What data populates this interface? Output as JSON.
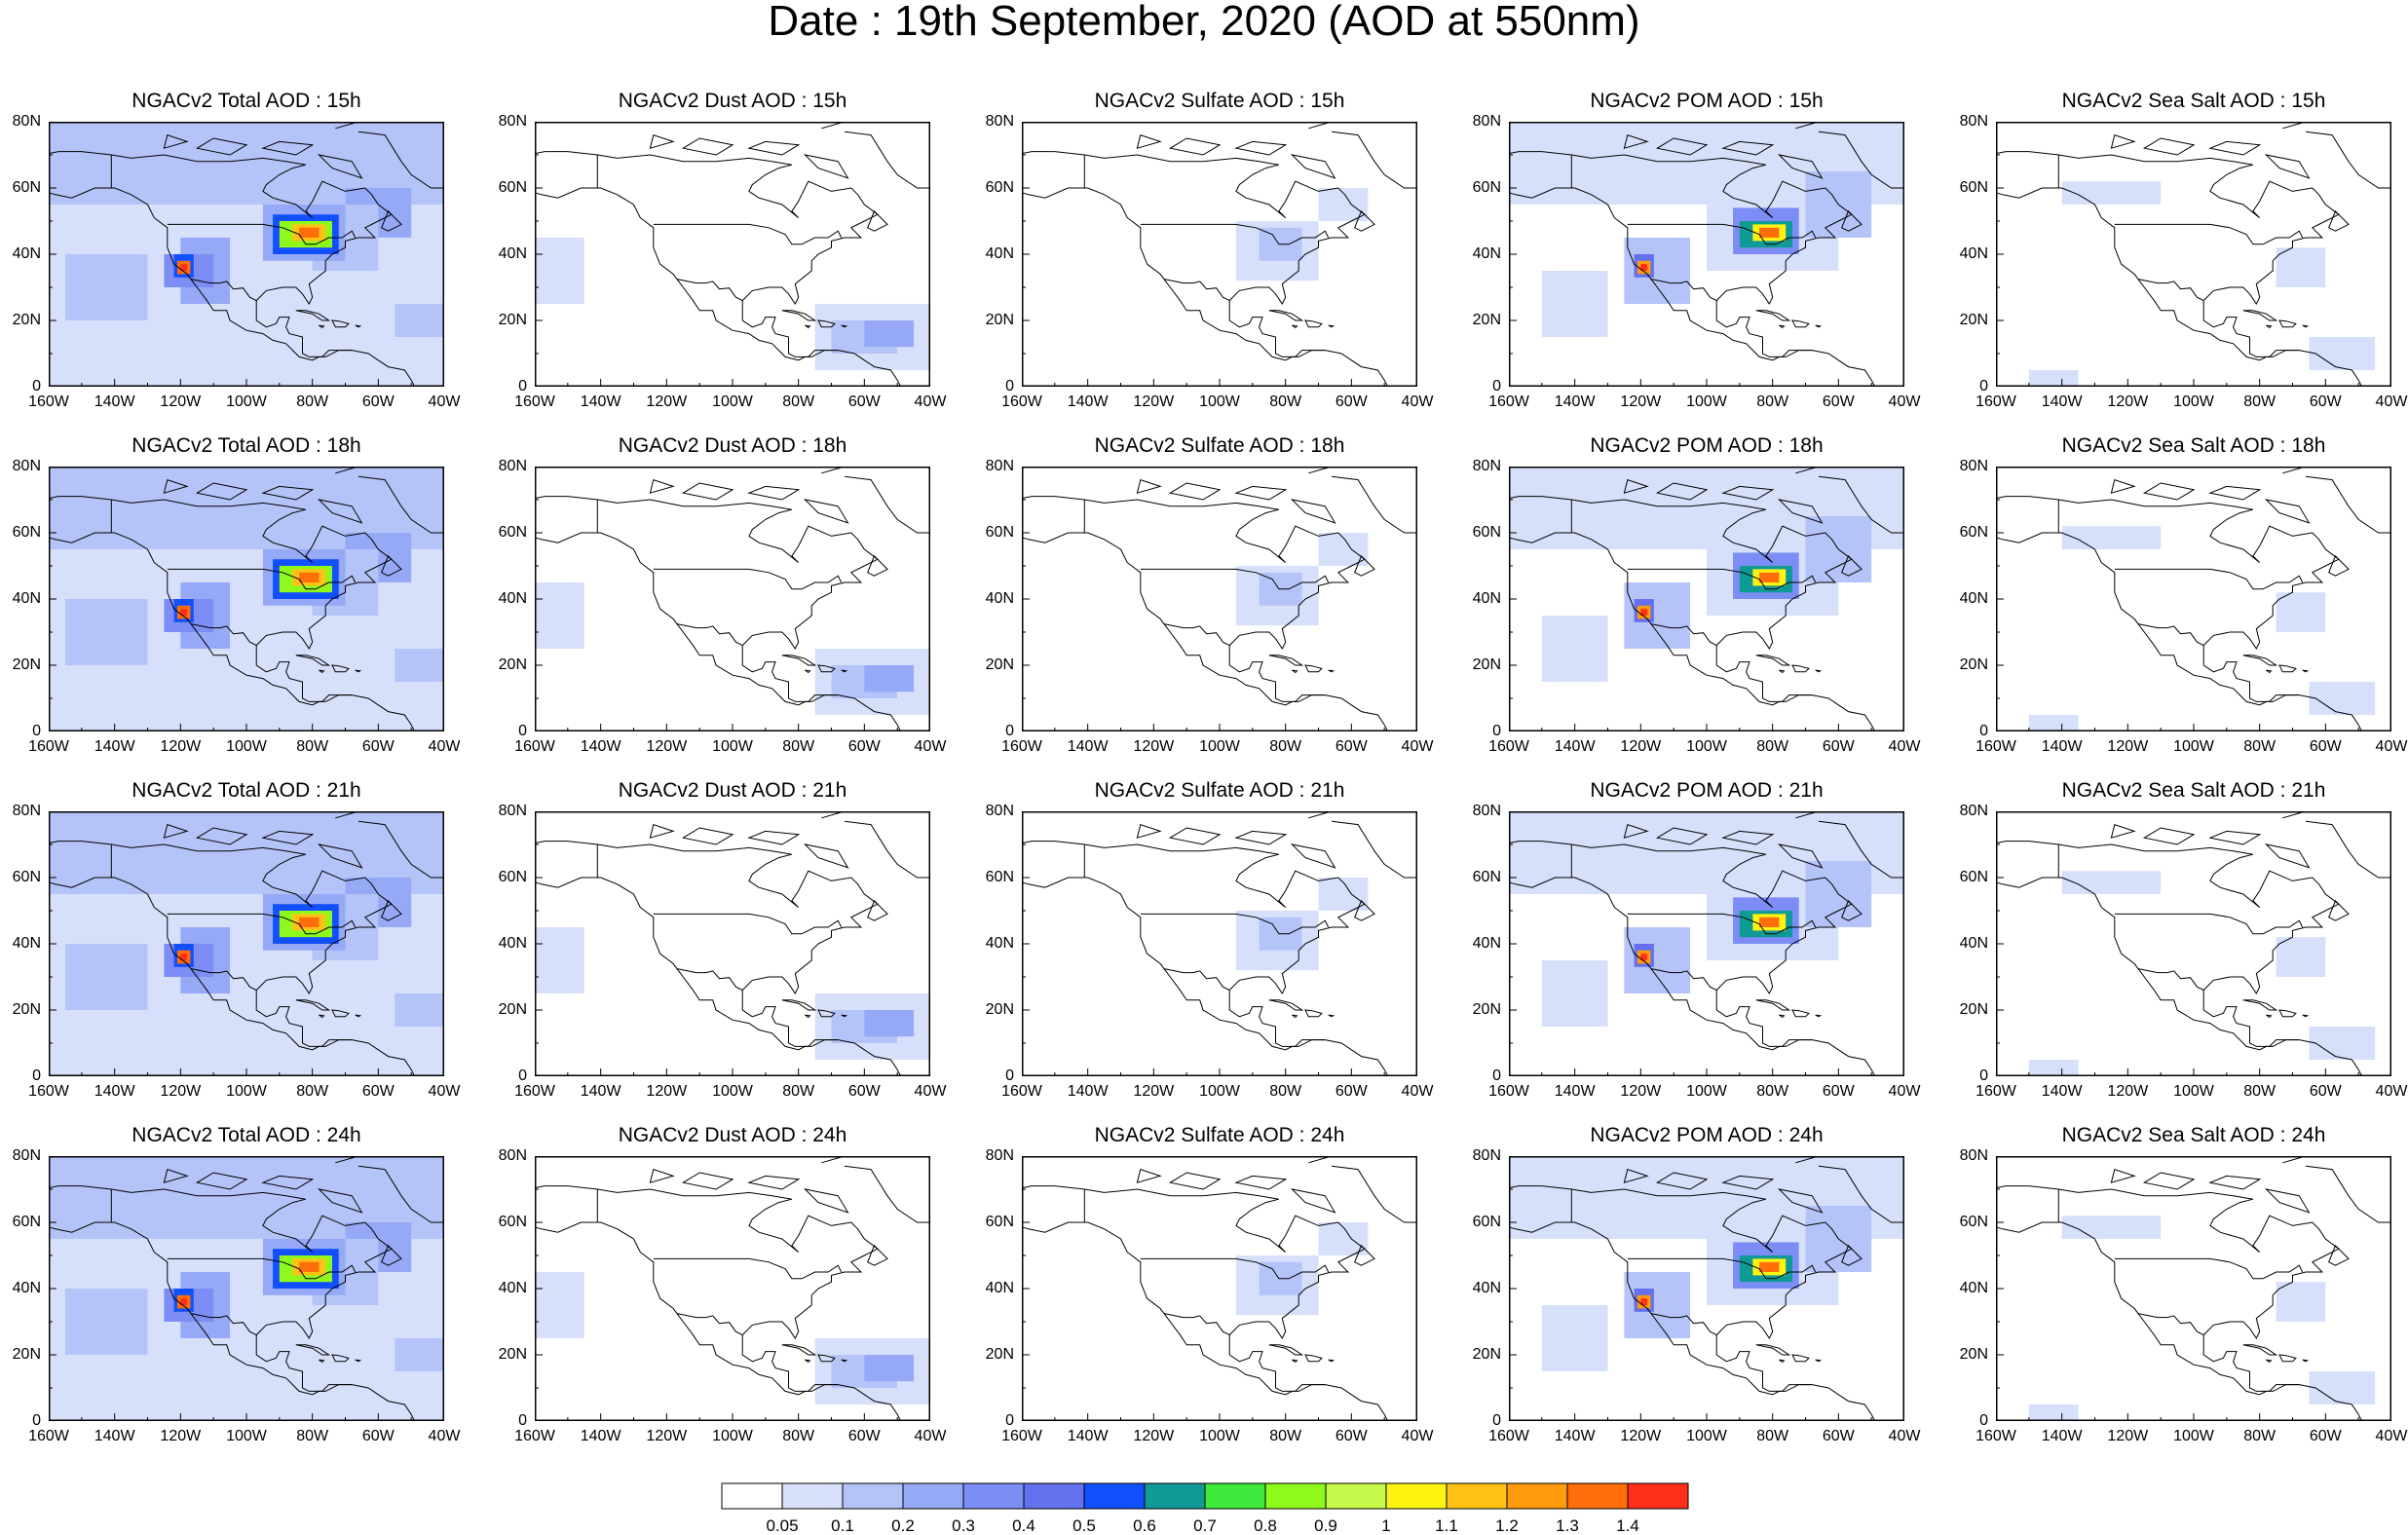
{
  "title": "Date : 19th September, 2020 (AOD at 550nm)",
  "axes": {
    "lat_ticks": [
      "0",
      "20N",
      "40N",
      "60N",
      "80N"
    ],
    "lon_ticks": [
      "160W",
      "140W",
      "120W",
      "100W",
      "80W",
      "60W",
      "40W"
    ],
    "lon_range": [
      -160,
      -40
    ],
    "lat_range": [
      0,
      80
    ]
  },
  "colors": {
    "ocean_light": "#dde6ff",
    "coast": "#000000"
  },
  "colorbar": {
    "labels": [
      "0.05",
      "0.1",
      "0.2",
      "0.3",
      "0.4",
      "0.5",
      "0.6",
      "0.7",
      "0.8",
      "0.9",
      "1",
      "1.1",
      "1.2",
      "1.3",
      "1.4"
    ],
    "colors": [
      "#ffffff",
      "#d7e0fb",
      "#b5c4f8",
      "#96a9f6",
      "#7c8ef5",
      "#6570ee",
      "#1250ff",
      "#109a96",
      "#3ee93b",
      "#8ef91b",
      "#c6f94a",
      "#fff312",
      "#ffc215",
      "#ff9a0c",
      "#ff6e0a",
      "#ff2f18"
    ]
  },
  "panels": [
    {
      "title": "NGACv2 Total AOD : 15h",
      "type": "total"
    },
    {
      "title": "NGACv2 Dust AOD : 15h",
      "type": "dust"
    },
    {
      "title": "NGACv2 Sulfate AOD : 15h",
      "type": "sulfate"
    },
    {
      "title": "NGACv2 POM AOD : 15h",
      "type": "pom"
    },
    {
      "title": "NGACv2 Sea Salt AOD : 15h",
      "type": "seasalt"
    },
    {
      "title": "NGACv2 Total AOD : 18h",
      "type": "total"
    },
    {
      "title": "NGACv2 Dust AOD : 18h",
      "type": "dust"
    },
    {
      "title": "NGACv2 Sulfate AOD : 18h",
      "type": "sulfate"
    },
    {
      "title": "NGACv2 POM AOD : 18h",
      "type": "pom"
    },
    {
      "title": "NGACv2 Sea Salt AOD : 18h",
      "type": "seasalt"
    },
    {
      "title": "NGACv2 Total AOD : 21h",
      "type": "total"
    },
    {
      "title": "NGACv2 Dust AOD : 21h",
      "type": "dust"
    },
    {
      "title": "NGACv2 Sulfate AOD : 21h",
      "type": "sulfate"
    },
    {
      "title": "NGACv2 POM AOD : 21h",
      "type": "pom"
    },
    {
      "title": "NGACv2 Sea Salt AOD : 21h",
      "type": "seasalt"
    },
    {
      "title": "NGACv2 Total AOD : 24h",
      "type": "total"
    },
    {
      "title": "NGACv2 Dust AOD : 24h",
      "type": "dust"
    },
    {
      "title": "NGACv2 Sulfate AOD : 24h",
      "type": "sulfate"
    },
    {
      "title": "NGACv2 POM AOD : 24h",
      "type": "pom"
    },
    {
      "title": "NGACv2 Sea Salt  AOD : 24h",
      "type": "seasalt"
    }
  ]
}
